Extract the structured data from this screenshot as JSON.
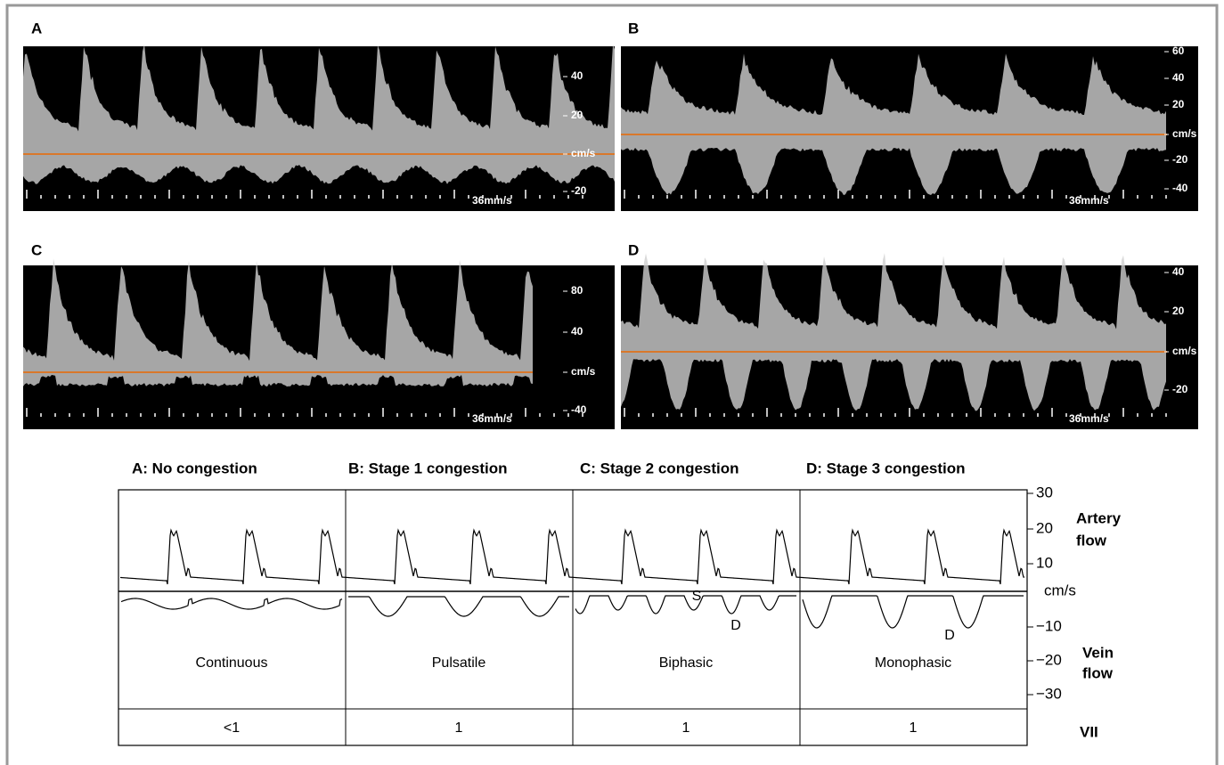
{
  "panels": [
    {
      "label": "A",
      "scale": [
        "40",
        "20",
        "cm/s",
        "-20"
      ],
      "speed": "36mm/s"
    },
    {
      "label": "B",
      "scale": [
        "60",
        "40",
        "20",
        "cm/s",
        "-20",
        "-40"
      ],
      "speed": "36mm/s"
    },
    {
      "label": "C",
      "scale": [
        "80",
        "40",
        "cm/s",
        "-40"
      ],
      "speed": "36mm/s"
    },
    {
      "label": "D",
      "scale": [
        "40",
        "20",
        "cm/s",
        "-20"
      ],
      "speed": "36mm/s"
    }
  ],
  "schematic": {
    "headers": [
      "A: No congestion",
      "B: Stage 1 congestion",
      "C: Stage 2 congestion",
      "D: Stage 3 congestion"
    ],
    "patterns": [
      "Continuous",
      "Pulsatile",
      "Biphasic",
      "Monophasic"
    ],
    "vii_values": [
      "<1",
      "1",
      "1",
      "1"
    ],
    "axis_ticks": [
      "30",
      "20",
      "10",
      "cm/s",
      "−10",
      "−20",
      "−30"
    ],
    "artery_label": [
      "Artery",
      "flow"
    ],
    "vein_label": [
      "Vein",
      "flow"
    ],
    "vii_label": "VII",
    "annotations": [
      "S",
      "D",
      "D"
    ]
  }
}
